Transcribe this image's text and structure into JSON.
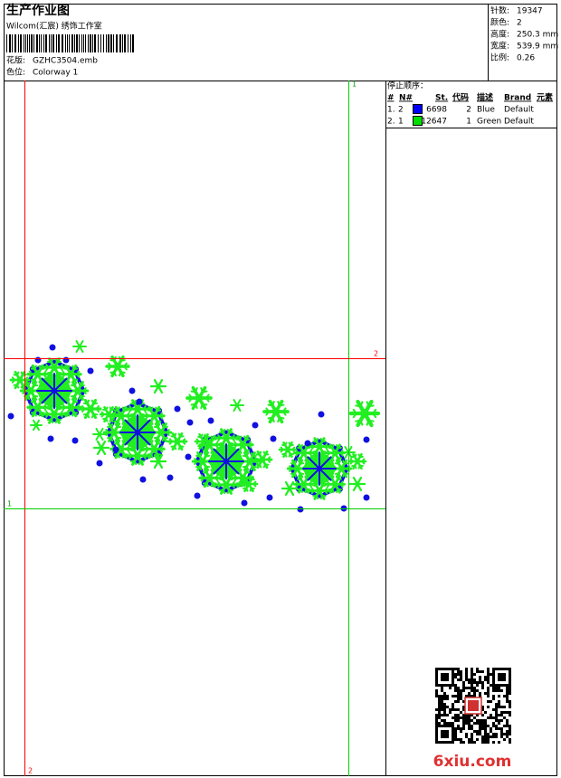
{
  "header": {
    "title": "生产作业图",
    "subtitle": "Wilcom(汇宸) 绣饰工作室",
    "design_label": "花版:",
    "design_file": "GZHC3504.emb",
    "colorway_label": "色位:",
    "colorway": "Colorway 1"
  },
  "stats": [
    {
      "label": "针数:",
      "value": "19347"
    },
    {
      "label": "颜色:",
      "value": "2"
    },
    {
      "label": "高度:",
      "value": "250.3 mm"
    },
    {
      "label": "宽度:",
      "value": "539.9 mm"
    },
    {
      "label": "比例:",
      "value": "0.26"
    }
  ],
  "stop_sequence": {
    "title": "停止顺序：",
    "columns": [
      "#",
      "N#",
      "St.",
      "代码",
      "描述",
      "Brand",
      "元素"
    ],
    "rows": [
      {
        "index": "1.",
        "needle": "2",
        "color": "#0000ff",
        "stitches": "6698",
        "code": "2",
        "description": "Blue",
        "brand": "Default"
      },
      {
        "index": "2.",
        "needle": "1",
        "color": "#00e000",
        "stitches": "12647",
        "code": "1",
        "description": "Green",
        "brand": "Default"
      }
    ]
  },
  "guides": {
    "top_green": "1",
    "right_red": "2",
    "left_green": "1",
    "bottom_red": "2"
  },
  "watermark": "6xiu.com"
}
